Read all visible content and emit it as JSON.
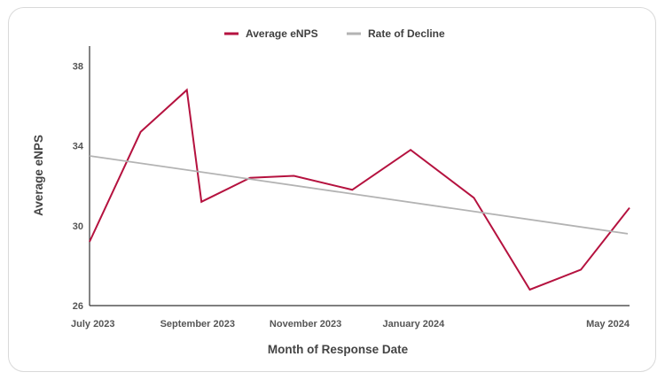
{
  "chart_data": {
    "type": "line",
    "xlabel": "Month of Response Date",
    "ylabel": "Average eNPS",
    "ylim": [
      26,
      39
    ],
    "yticks": [
      "26",
      "30",
      "34",
      "38"
    ],
    "xticks": [
      "July 2023",
      "September 2023",
      "November 2023",
      "January 2024",
      "May 2024"
    ],
    "x_range": [
      "2023-07",
      "2024-05"
    ],
    "legend_position": "top-center",
    "grid": false,
    "series": [
      {
        "name": "Average eNPS",
        "color": "#b5123f",
        "x": [
          "2023-07",
          "2023-08",
          "2023-09",
          "2023-09",
          "2023-10",
          "2023-11",
          "2023-12",
          "2024-01",
          "2024-02",
          "2024-03",
          "2024-04",
          "2024-05"
        ],
        "values": [
          29.2,
          34.7,
          36.8,
          31.2,
          32.4,
          32.5,
          31.8,
          33.8,
          31.4,
          26.8,
          27.8,
          30.9
        ]
      },
      {
        "name": "Rate of Decline",
        "color": "#b3b3b3",
        "x": [
          "2023-07",
          "2024-05"
        ],
        "values": [
          33.5,
          29.6
        ]
      }
    ]
  }
}
